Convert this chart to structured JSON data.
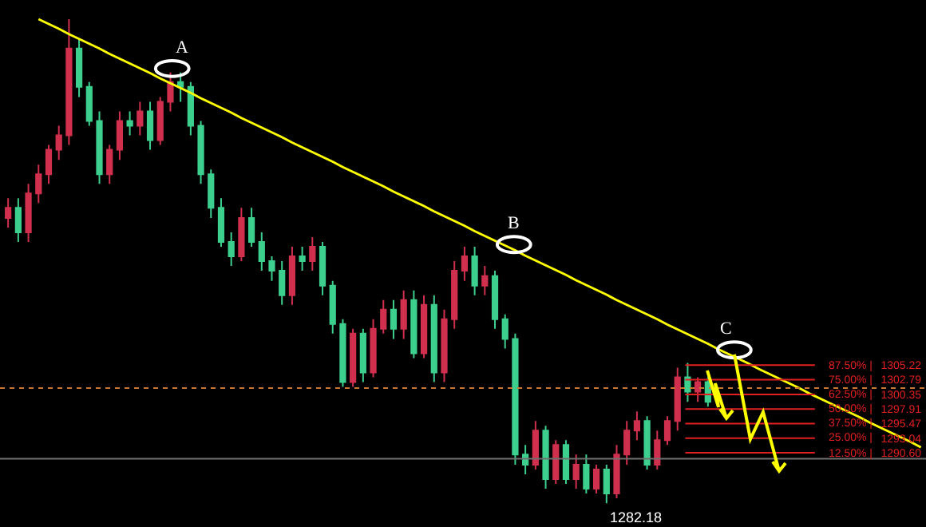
{
  "chart_data": {
    "type": "candlestick",
    "tick_labels": "y",
    "grid": false,
    "categories": [
      null,
      null,
      null,
      null,
      null,
      null,
      null,
      null,
      null,
      null,
      null,
      null,
      null,
      null,
      null,
      null,
      null,
      null,
      null,
      null,
      null,
      null,
      null,
      null,
      null,
      null,
      null,
      null,
      null,
      null,
      null,
      null,
      null,
      null,
      null,
      null,
      null,
      null,
      null,
      null,
      null,
      null,
      null,
      null,
      null,
      null,
      null,
      null,
      null,
      null,
      null,
      null,
      null,
      null,
      null,
      null,
      null,
      null,
      null,
      null,
      null,
      null,
      null,
      null,
      null,
      null,
      null,
      null,
      null,
      null,
      null,
      null,
      null,
      null,
      null,
      null,
      null,
      null,
      null,
      null,
      null,
      null,
      null,
      null,
      null,
      null,
      null,
      null,
      null,
      null,
      null
    ],
    "ylim": [
      1278.2,
      1366.2
    ],
    "yticks": [
      1305.22,
      1302.79,
      1300.35,
      1297.91,
      1295.47,
      1293.04,
      {
        "value": 1290.6,
        "label": "1290.60"
      }
    ],
    "ohlc": [
      [
        1329.8,
        1333.1,
        1328.2,
        1331.5
      ],
      [
        1331.5,
        1333.1,
        1325.8,
        1327.4
      ],
      [
        1327.4,
        1335.5,
        1325.8,
        1333.9
      ],
      [
        1333.9,
        1338.7,
        1332.3,
        1337.1
      ],
      [
        1337.1,
        1342.0,
        1335.5,
        1341.2
      ],
      [
        1341.2,
        1345.2,
        1339.5,
        1343.6
      ],
      [
        1343.6,
        1363.0,
        1342.0,
        1358.1
      ],
      [
        1358.1,
        1359.7,
        1350.0,
        1351.7
      ],
      [
        1351.7,
        1352.5,
        1345.2,
        1346.0
      ],
      [
        1346.0,
        1347.6,
        1335.5,
        1337.1
      ],
      [
        1337.1,
        1342.0,
        1335.5,
        1341.2
      ],
      [
        1341.2,
        1347.6,
        1339.5,
        1346.0
      ],
      [
        1346.0,
        1347.6,
        1343.6,
        1345.2
      ],
      [
        1345.2,
        1349.2,
        1343.6,
        1347.6
      ],
      [
        1347.6,
        1349.2,
        1341.2,
        1342.8
      ],
      [
        1342.8,
        1350.0,
        1342.0,
        1349.2
      ],
      [
        1349.2,
        1354.1,
        1347.6,
        1352.5
      ],
      [
        1352.5,
        1354.1,
        1349.2,
        1351.7
      ],
      [
        1351.7,
        1352.5,
        1343.6,
        1345.2
      ],
      [
        1345.2,
        1346.0,
        1335.5,
        1337.1
      ],
      [
        1337.1,
        1337.9,
        1329.8,
        1331.5
      ],
      [
        1331.5,
        1333.1,
        1325.0,
        1325.8
      ],
      [
        1325.8,
        1327.4,
        1321.8,
        1323.4
      ],
      [
        1323.4,
        1331.5,
        1322.6,
        1329.8
      ],
      [
        1329.8,
        1331.5,
        1325.0,
        1325.8
      ],
      [
        1325.8,
        1327.4,
        1321.0,
        1322.6
      ],
      [
        1322.6,
        1323.4,
        1319.3,
        1321.0
      ],
      [
        1321.0,
        1322.6,
        1315.3,
        1316.9
      ],
      [
        1316.9,
        1325.0,
        1315.3,
        1323.4
      ],
      [
        1323.4,
        1325.0,
        1321.0,
        1322.6
      ],
      [
        1322.6,
        1326.6,
        1321.0,
        1325.0
      ],
      [
        1325.0,
        1325.8,
        1316.9,
        1318.5
      ],
      [
        1318.5,
        1319.3,
        1310.5,
        1312.1
      ],
      [
        1312.1,
        1312.9,
        1301.6,
        1302.4
      ],
      [
        1302.4,
        1311.3,
        1301.6,
        1310.5
      ],
      [
        1310.5,
        1311.3,
        1302.4,
        1304.0
      ],
      [
        1304.0,
        1312.9,
        1303.2,
        1311.3
      ],
      [
        1311.3,
        1316.1,
        1310.5,
        1314.5
      ],
      [
        1314.5,
        1316.1,
        1309.6,
        1311.3
      ],
      [
        1311.3,
        1317.7,
        1309.6,
        1316.1
      ],
      [
        1316.1,
        1317.7,
        1306.4,
        1307.2
      ],
      [
        1307.2,
        1316.9,
        1306.4,
        1315.3
      ],
      [
        1315.3,
        1316.9,
        1302.4,
        1304.0
      ],
      [
        1304.0,
        1314.5,
        1302.4,
        1312.9
      ],
      [
        1312.9,
        1322.6,
        1311.3,
        1321.0
      ],
      [
        1321.0,
        1325.0,
        1319.3,
        1323.4
      ],
      [
        1323.4,
        1325.0,
        1316.9,
        1318.5
      ],
      [
        1318.5,
        1321.8,
        1316.9,
        1320.1
      ],
      [
        1320.1,
        1321.0,
        1311.3,
        1312.9
      ],
      [
        1312.9,
        1313.7,
        1308.0,
        1309.6
      ],
      [
        1309.6,
        1310.5,
        1288.6,
        1290.3
      ],
      [
        1290.3,
        1291.9,
        1287.0,
        1288.6
      ],
      [
        1288.6,
        1295.9,
        1287.8,
        1294.3
      ],
      [
        1294.3,
        1295.1,
        1284.6,
        1286.2
      ],
      [
        1286.2,
        1292.7,
        1285.4,
        1291.9
      ],
      [
        1291.9,
        1292.7,
        1285.4,
        1286.2
      ],
      [
        1286.2,
        1290.3,
        1284.6,
        1288.6
      ],
      [
        1288.6,
        1290.3,
        1283.8,
        1284.6
      ],
      [
        1284.6,
        1288.6,
        1283.8,
        1287.8
      ],
      [
        1287.8,
        1288.6,
        1282.18,
        1283.8
      ],
      [
        1283.8,
        1291.9,
        1283.0,
        1290.3
      ],
      [
        1290.3,
        1295.9,
        1288.6,
        1294.3
      ],
      [
        1294.3,
        1297.5,
        1292.7,
        1295.9
      ],
      [
        1295.9,
        1296.7,
        1287.8,
        1288.6
      ],
      [
        1288.6,
        1294.3,
        1287.8,
        1292.7
      ],
      [
        1292.7,
        1296.7,
        1291.9,
        1295.9
      ],
      [
        1295.9,
        1304.8,
        1294.3,
        1303.2
      ],
      [
        1303.2,
        1305.6,
        1299.1,
        1300.8
      ],
      [
        1300.8,
        1303.2,
        1299.1,
        1302.4
      ],
      [
        1302.4,
        1303.2,
        1298.3,
        1299.1
      ],
      null,
      null,
      null,
      null,
      null,
      null,
      null,
      null,
      null,
      null,
      null,
      null,
      null,
      null,
      null,
      null,
      null,
      null,
      null,
      null,
      null
    ],
    "colors": [
      "#d0304e",
      "#3ccf8e",
      "#d0304e",
      "#d0304e",
      "#d0304e",
      "#d0304e",
      "#d0304e",
      "#3ccf8e",
      "#3ccf8e",
      "#3ccf8e",
      "#d0304e",
      "#d0304e",
      "#3ccf8e",
      "#d0304e",
      "#3ccf8e",
      "#d0304e",
      "#d0304e",
      "#3ccf8e",
      "#3ccf8e",
      "#3ccf8e",
      "#3ccf8e",
      "#3ccf8e",
      "#3ccf8e",
      "#d0304e",
      "#3ccf8e",
      "#3ccf8e",
      "#3ccf8e",
      "#3ccf8e",
      "#d0304e",
      "#3ccf8e",
      "#d0304e",
      "#3ccf8e",
      "#3ccf8e",
      "#3ccf8e",
      "#d0304e",
      "#3ccf8e",
      "#d0304e",
      "#d0304e",
      "#3ccf8e",
      "#d0304e",
      "#3ccf8e",
      "#d0304e",
      "#3ccf8e",
      "#d0304e",
      "#d0304e",
      "#d0304e",
      "#3ccf8e",
      "#d0304e",
      "#3ccf8e",
      "#3ccf8e",
      "#3ccf8e",
      "#3ccf8e",
      "#d0304e",
      "#3ccf8e",
      "#d0304e",
      "#3ccf8e",
      "#d0304e",
      "#3ccf8e",
      "#d0304e",
      "#3ccf8e",
      "#d0304e",
      "#d0304e",
      "#d0304e",
      "#3ccf8e",
      "#d0304e",
      "#d0304e",
      "#d0304e",
      "#3ccf8e",
      "#d0304e",
      "#3ccf8e",
      null,
      null,
      null,
      null,
      null,
      null,
      null,
      null,
      null,
      null,
      null,
      null,
      null,
      null,
      null,
      null,
      null,
      null,
      null,
      null,
      null
    ],
    "series": [
      {
        "type": "line",
        "color": "#ffff00",
        "values": [
          null,
          null,
          null,
          1363.0,
          1362.2,
          1361.4,
          1360.5,
          1359.7,
          1358.9,
          1358.1,
          1357.2,
          1356.4,
          1355.6,
          1354.8,
          1354.0,
          1353.1,
          1352.3,
          1351.5,
          1350.7,
          1349.8,
          1349.0,
          1348.2,
          1347.4,
          1346.5,
          1345.7,
          1344.9,
          1344.1,
          1343.3,
          1342.4,
          1341.6,
          1340.8,
          1340.0,
          1339.2,
          1338.3,
          1337.5,
          1336.7,
          1335.9,
          1335.1,
          1334.2,
          1333.4,
          1332.6,
          1331.8,
          1330.9,
          1330.1,
          1329.3,
          1328.5,
          1327.6,
          1326.8,
          1326.0,
          1325.2,
          1324.4,
          1323.5,
          1322.7,
          1321.9,
          1321.1,
          1320.3,
          1319.4,
          1318.6,
          1317.8,
          1317.0,
          1316.1,
          1315.3,
          1314.5,
          1313.7,
          1312.9,
          1312.0,
          1311.2,
          1310.4,
          1309.6,
          1308.8,
          1307.9,
          1307.1,
          1306.3,
          1305.5,
          1304.6,
          1303.8,
          1303.0,
          1302.2,
          1301.4,
          1300.5,
          1299.7,
          1298.9,
          1298.1,
          1297.3,
          1296.5,
          1295.6,
          1294.8,
          1294.0,
          1293.2,
          1292.4,
          1291.5
        ]
      }
    ],
    "ref_lines": [
      {
        "axis": "y",
        "value": 1305.22,
        "color": "#e02020"
      },
      {
        "axis": "y",
        "value": 1302.79,
        "color": "#e02020"
      },
      {
        "axis": "y",
        "value": 1300.35,
        "color": "#e02020"
      },
      {
        "axis": "y",
        "value": 1297.91,
        "color": "#e02020"
      },
      {
        "axis": "y",
        "value": 1295.47,
        "color": "#e02020"
      },
      {
        "axis": "y",
        "value": 1293.04,
        "color": "#e02020"
      },
      {
        "axis": "y",
        "value": 1290.6,
        "color": "#e02020"
      },
      {
        "axis": "y",
        "value": 1301.4,
        "color": "#c87830",
        "line_style": "dotted"
      },
      {
        "axis": "y",
        "value": 1289.6,
        "color": "#707070",
        "line_style": "solid"
      }
    ],
    "annotations": [
      "A",
      "B",
      "C",
      "1282.18",
      "87.50% |",
      "75.00% |",
      "62.50% |",
      "50.00% |",
      "37.50% |",
      "25.00% |",
      "12.50% |"
    ]
  }
}
